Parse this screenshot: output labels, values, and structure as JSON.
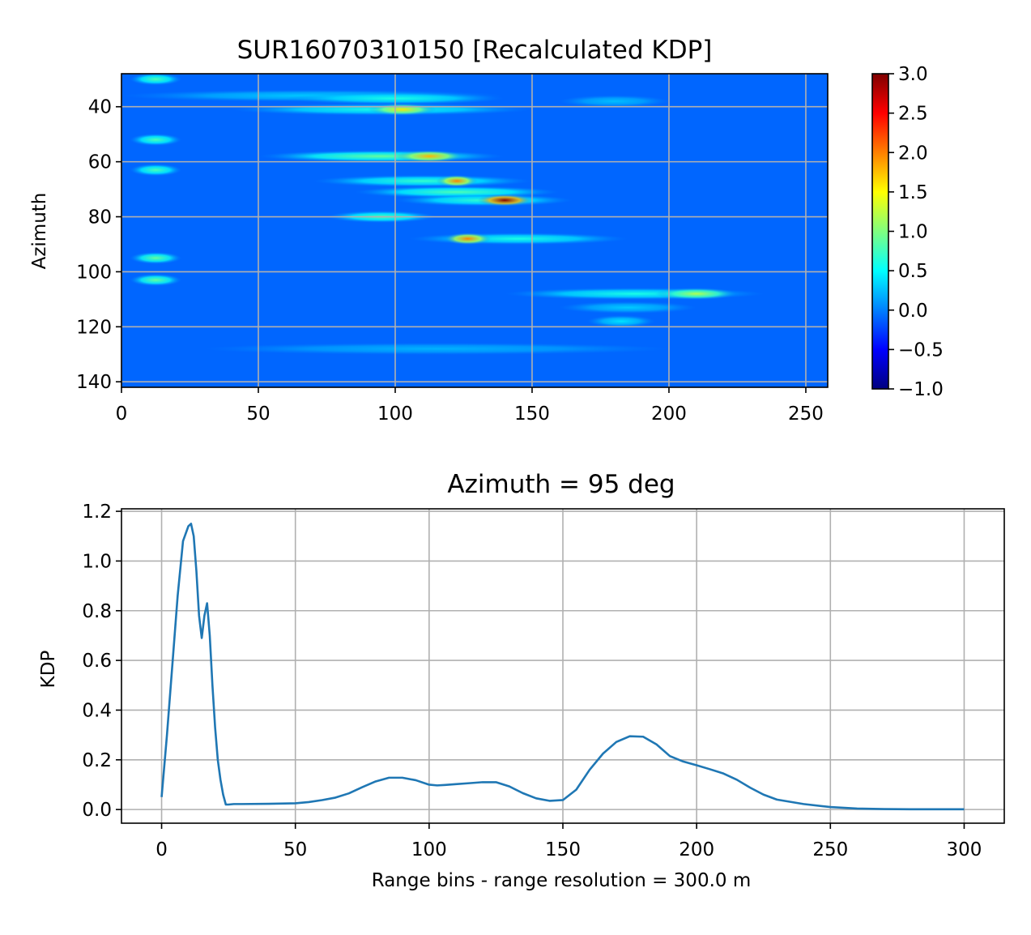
{
  "chart_data": [
    {
      "type": "heatmap",
      "title": "SUR16070310150 [Recalculated KDP]",
      "xlabel": "",
      "ylabel": "Azimuth",
      "xlim": [
        0,
        258
      ],
      "ylim": [
        142,
        28
      ],
      "xticks": [
        0,
        50,
        100,
        150,
        200,
        250
      ],
      "xtick_labels": [
        "0",
        "50",
        "100",
        "150",
        "200",
        "250"
      ],
      "yticks": [
        40,
        60,
        80,
        100,
        120,
        140
      ],
      "ytick_labels": [
        "40",
        "60",
        "80",
        "100",
        "120",
        "140"
      ],
      "grid": true,
      "colormap": "jet",
      "colorbar": {
        "range": [
          -1.0,
          3.0
        ],
        "ticks": [
          3.0,
          2.5,
          2.0,
          1.5,
          1.0,
          0.5,
          0.0,
          -0.5,
          -1.0
        ],
        "tick_labels": [
          "3.0",
          "2.5",
          "2.0",
          "1.5",
          "1.0",
          "0.5",
          "0.0",
          "−0.5",
          "−1.0"
        ]
      },
      "background_value": 0.0,
      "features": [
        {
          "azimuth": 30,
          "range_start": 3,
          "range_end": 22,
          "value": 0.8
        },
        {
          "azimuth": 36,
          "range_start": 0,
          "range_end": 140,
          "value": 0.3
        },
        {
          "azimuth": 37,
          "range_start": 60,
          "range_end": 140,
          "value": 0.6
        },
        {
          "azimuth": 38,
          "range_start": 160,
          "range_end": 200,
          "value": 0.25
        },
        {
          "azimuth": 41,
          "range_start": 40,
          "range_end": 150,
          "value": 0.6
        },
        {
          "azimuth": 41,
          "range_start": 90,
          "range_end": 115,
          "value": 1.6
        },
        {
          "azimuth": 52,
          "range_start": 3,
          "range_end": 22,
          "value": 0.8
        },
        {
          "azimuth": 58,
          "range_start": 50,
          "range_end": 140,
          "value": 0.9
        },
        {
          "azimuth": 58,
          "range_start": 100,
          "range_end": 125,
          "value": 1.8
        },
        {
          "azimuth": 63,
          "range_start": 3,
          "range_end": 22,
          "value": 0.8
        },
        {
          "azimuth": 67,
          "range_start": 70,
          "range_end": 150,
          "value": 0.7
        },
        {
          "azimuth": 67,
          "range_start": 115,
          "range_end": 130,
          "value": 2.0
        },
        {
          "azimuth": 71,
          "range_start": 85,
          "range_end": 160,
          "value": 0.8
        },
        {
          "azimuth": 74,
          "range_start": 100,
          "range_end": 165,
          "value": 0.7
        },
        {
          "azimuth": 74,
          "range_start": 130,
          "range_end": 150,
          "value": 3.0
        },
        {
          "azimuth": 80,
          "range_start": 75,
          "range_end": 115,
          "value": 0.8
        },
        {
          "azimuth": 88,
          "range_start": 105,
          "range_end": 185,
          "value": 0.6
        },
        {
          "azimuth": 88,
          "range_start": 118,
          "range_end": 135,
          "value": 2.0
        },
        {
          "azimuth": 95,
          "range_start": 3,
          "range_end": 22,
          "value": 0.9
        },
        {
          "azimuth": 103,
          "range_start": 3,
          "range_end": 22,
          "value": 0.9
        },
        {
          "azimuth": 108,
          "range_start": 140,
          "range_end": 235,
          "value": 0.6
        },
        {
          "azimuth": 108,
          "range_start": 195,
          "range_end": 225,
          "value": 1.2
        },
        {
          "azimuth": 113,
          "range_start": 160,
          "range_end": 210,
          "value": 0.3
        },
        {
          "azimuth": 118,
          "range_start": 170,
          "range_end": 195,
          "value": 0.4
        },
        {
          "azimuth": 128,
          "range_start": 30,
          "range_end": 200,
          "value": 0.2
        }
      ]
    },
    {
      "type": "line",
      "title": "Azimuth = 95 deg",
      "xlabel": "Range bins - range resolution = 300.0 m",
      "ylabel": "KDP",
      "xlim": [
        -15,
        315
      ],
      "ylim": [
        -0.055,
        1.21
      ],
      "xticks": [
        0,
        50,
        100,
        150,
        200,
        250,
        300
      ],
      "xtick_labels": [
        "0",
        "50",
        "100",
        "150",
        "200",
        "250",
        "300"
      ],
      "yticks": [
        0.0,
        0.2,
        0.4,
        0.6,
        0.8,
        1.0,
        1.2
      ],
      "ytick_labels": [
        "0.0",
        "0.2",
        "0.4",
        "0.6",
        "0.8",
        "1.0",
        "1.2"
      ],
      "grid": true,
      "series": [
        {
          "name": "KDP",
          "color": "#1f77b4",
          "x": [
            0,
            2,
            4,
            6,
            8,
            10,
            11,
            12,
            13,
            14,
            15,
            16,
            17,
            18,
            19,
            20,
            21,
            22,
            23,
            24,
            25,
            27,
            30,
            40,
            50,
            55,
            60,
            65,
            70,
            75,
            80,
            85,
            90,
            95,
            100,
            103,
            106,
            110,
            115,
            120,
            125,
            130,
            135,
            140,
            145,
            150,
            155,
            160,
            165,
            170,
            175,
            180,
            185,
            190,
            195,
            200,
            205,
            210,
            215,
            220,
            225,
            230,
            240,
            250,
            260,
            270,
            280,
            290,
            300
          ],
          "values": [
            0.05,
            0.3,
            0.58,
            0.86,
            1.08,
            1.14,
            1.15,
            1.1,
            0.96,
            0.78,
            0.69,
            0.78,
            0.83,
            0.7,
            0.5,
            0.33,
            0.2,
            0.12,
            0.06,
            0.02,
            0.02,
            0.022,
            0.022,
            0.023,
            0.025,
            0.03,
            0.038,
            0.048,
            0.065,
            0.09,
            0.113,
            0.128,
            0.128,
            0.118,
            0.1,
            0.097,
            0.099,
            0.102,
            0.106,
            0.11,
            0.11,
            0.093,
            0.066,
            0.045,
            0.035,
            0.038,
            0.08,
            0.16,
            0.225,
            0.272,
            0.295,
            0.293,
            0.262,
            0.215,
            0.193,
            0.178,
            0.162,
            0.145,
            0.12,
            0.088,
            0.06,
            0.04,
            0.022,
            0.01,
            0.004,
            0.002,
            0.001,
            0.001,
            0.001
          ]
        }
      ]
    }
  ]
}
